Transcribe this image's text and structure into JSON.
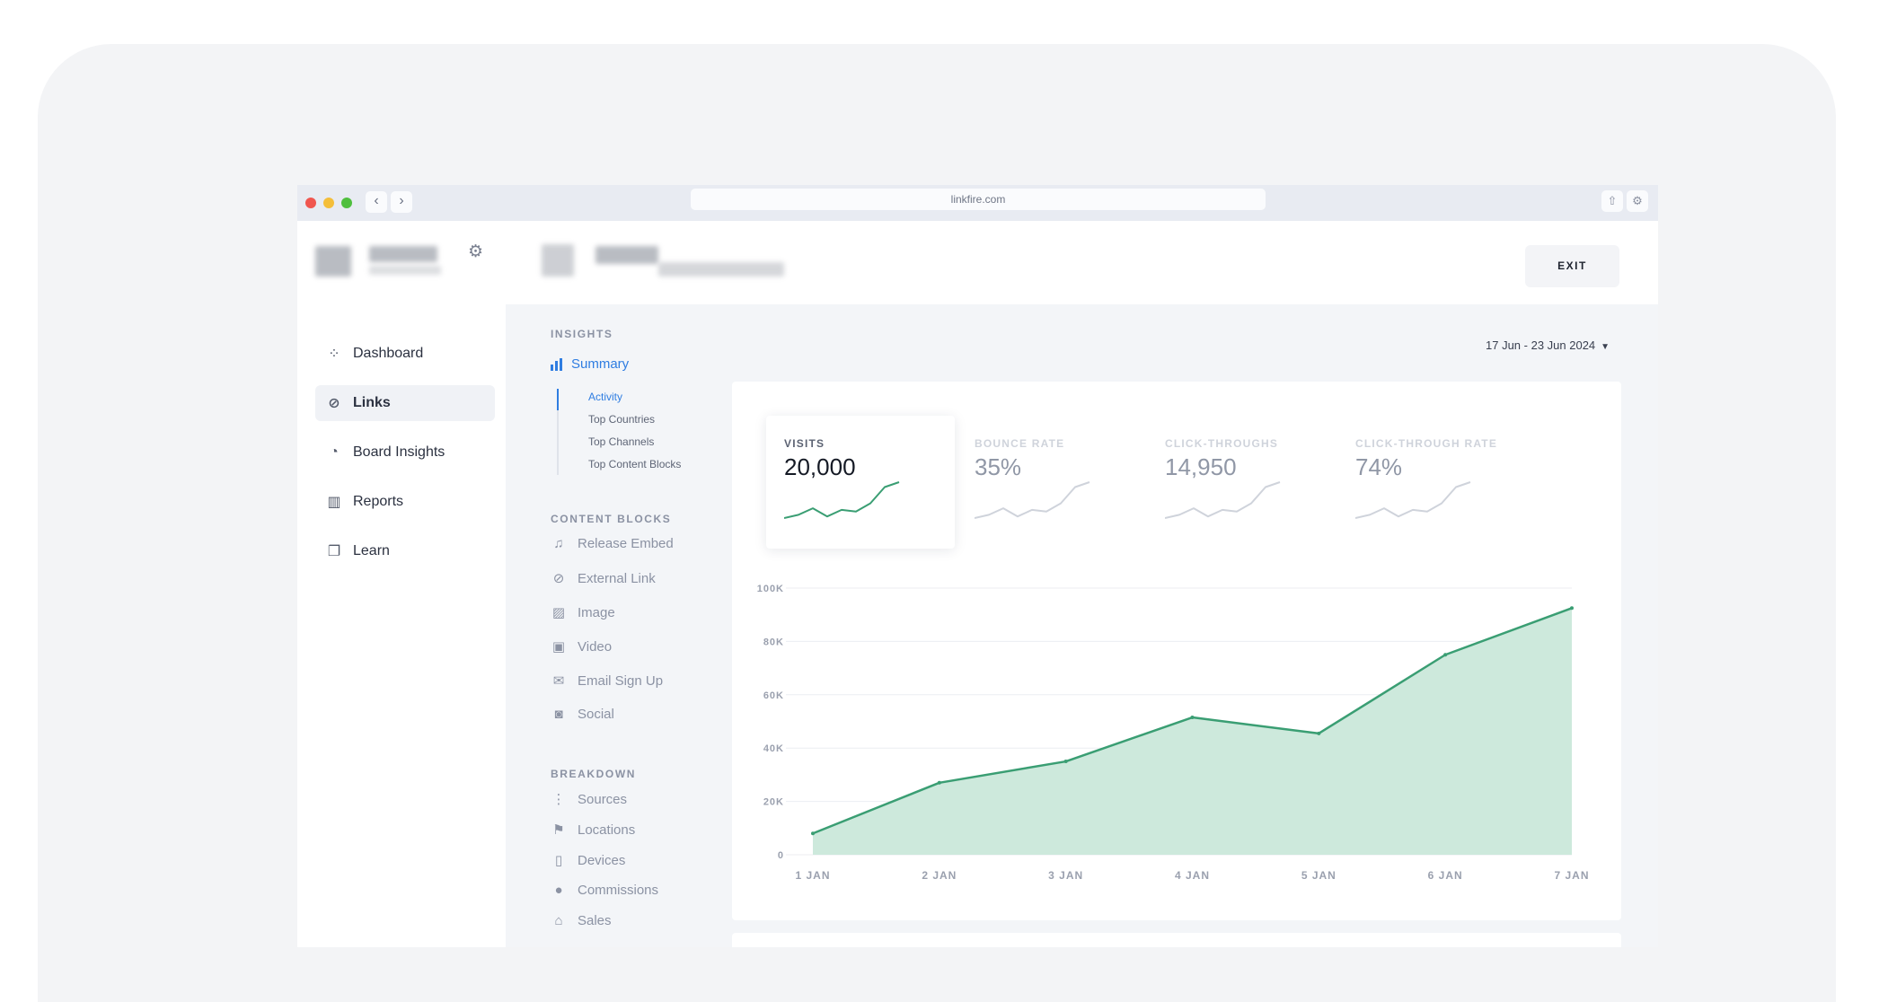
{
  "browser": {
    "url": "linkfire.com",
    "back_glyph": "‹",
    "forward_glyph": "›",
    "share_glyph": "⇧",
    "extensions_glyph": "⚙"
  },
  "header": {
    "exit_label": "EXIT",
    "gear_glyph": "⚙"
  },
  "leftnav": {
    "items": [
      {
        "label": "Dashboard",
        "icon": "grid-icon",
        "glyph": "⁘",
        "active": false
      },
      {
        "label": "Links",
        "icon": "link-icon",
        "glyph": "⊘",
        "active": true
      },
      {
        "label": "Board Insights",
        "icon": "pie-chart-icon",
        "glyph": "◔",
        "active": false
      },
      {
        "label": "Reports",
        "icon": "bar-chart-icon",
        "glyph": "▥",
        "active": false
      },
      {
        "label": "Learn",
        "icon": "book-icon",
        "glyph": "❐",
        "active": false
      }
    ]
  },
  "subnav": {
    "insights_title": "INSIGHTS",
    "summary_label": "Summary",
    "summary_links": [
      "Activity",
      "Top Countries",
      "Top Channels",
      "Top Content Blocks"
    ],
    "content_blocks_title": "CONTENT BLOCKS",
    "content_blocks": [
      {
        "label": "Release Embed",
        "icon": "music-note-icon",
        "glyph": "♫"
      },
      {
        "label": "External Link",
        "icon": "link-icon",
        "glyph": "⊘"
      },
      {
        "label": "Image",
        "icon": "image-icon",
        "glyph": "▨"
      },
      {
        "label": "Video",
        "icon": "video-icon",
        "glyph": "▣"
      },
      {
        "label": "Email Sign Up",
        "icon": "envelope-icon",
        "glyph": "✉"
      },
      {
        "label": "Social",
        "icon": "social-icon",
        "glyph": "◙"
      }
    ],
    "breakdown_title": "BREAKDOWN",
    "breakdown": [
      {
        "label": "Sources",
        "icon": "share-icon",
        "glyph": "⋮"
      },
      {
        "label": "Locations",
        "icon": "flag-icon",
        "glyph": "⚑"
      },
      {
        "label": "Devices",
        "icon": "device-icon",
        "glyph": "▯"
      },
      {
        "label": "Commissions",
        "icon": "coin-icon",
        "glyph": "●"
      },
      {
        "label": "Sales",
        "icon": "basket-icon",
        "glyph": "⌂"
      }
    ]
  },
  "date_range": {
    "label": "17 Jun - 23 Jun 2024",
    "caret": "▼"
  },
  "kpis": [
    {
      "label": "VISITS",
      "value": "20,000",
      "active": true
    },
    {
      "label": "BOUNCE RATE",
      "value": "35%",
      "active": false
    },
    {
      "label": "CLICK-THROUGHS",
      "value": "14,950",
      "active": false
    },
    {
      "label": "CLICK-THROUGH RATE",
      "value": "74%",
      "active": false
    }
  ],
  "sparkline": [
    6,
    8,
    12,
    7,
    11,
    10,
    15,
    25,
    28
  ],
  "colors": {
    "accent_blue": "#2f7de1",
    "chart_line": "#3a9e73",
    "chart_fill": "#cde9dc",
    "spark_inactive": "#cfd3db"
  },
  "chart_data": {
    "type": "area",
    "categories": [
      "1 JAN",
      "2 JAN",
      "3 JAN",
      "4 JAN",
      "5 JAN",
      "6 JAN",
      "7 JAN"
    ],
    "x": [
      0,
      1,
      2,
      3,
      4,
      5,
      6
    ],
    "values": [
      8000,
      27000,
      35000,
      51500,
      45500,
      75000,
      92500
    ],
    "y_ticks": [
      0,
      20000,
      40000,
      60000,
      80000,
      100000
    ],
    "y_tick_labels": [
      "0",
      "20K",
      "40K",
      "60K",
      "80K",
      "100K"
    ],
    "ylim": [
      0,
      100000
    ],
    "xlabel": "",
    "ylabel": "",
    "grid": true,
    "series": [
      {
        "values": [
          8000,
          27000,
          35000,
          51500,
          45500,
          75000,
          92500
        ]
      }
    ]
  }
}
